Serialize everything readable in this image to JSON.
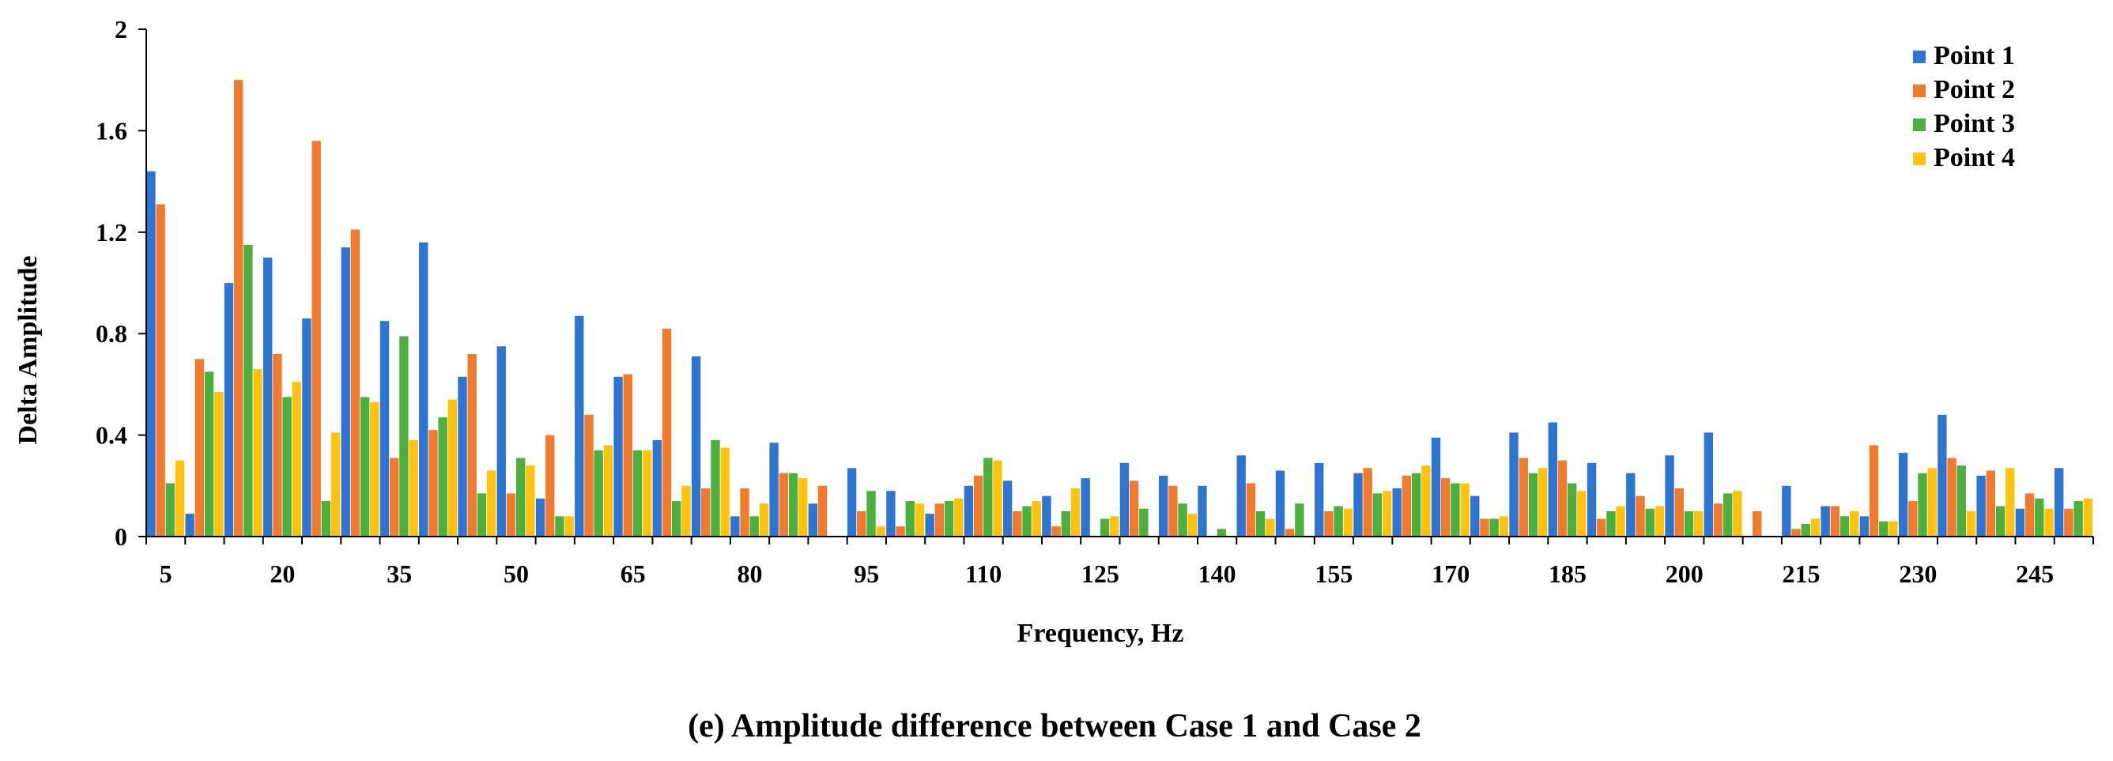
{
  "chart_data": {
    "type": "bar",
    "title": "",
    "caption": "(e) Amplitude  difference between Case 1 and Case 2",
    "xlabel": "Frequency,   Hz",
    "ylabel": "Delta Amplitude",
    "ylim": [
      0,
      2
    ],
    "yticks": [
      "0",
      "0.4",
      "0.8",
      "1.2",
      "1.6",
      "2"
    ],
    "ytick_values": [
      0,
      0.4,
      0.8,
      1.2,
      1.6,
      2.0
    ],
    "xticks": [
      "5",
      "20",
      "35",
      "50",
      "65",
      "80",
      "95",
      "110",
      "125",
      "140",
      "155",
      "170",
      "185",
      "200",
      "215",
      "230",
      "245"
    ],
    "xtick_values": [
      5,
      20,
      35,
      50,
      65,
      80,
      95,
      110,
      125,
      140,
      155,
      170,
      185,
      200,
      215,
      230,
      245
    ],
    "legend_position": "top-right",
    "categories": [
      5,
      10,
      15,
      20,
      25,
      30,
      35,
      40,
      45,
      50,
      55,
      60,
      65,
      70,
      75,
      80,
      85,
      90,
      95,
      100,
      105,
      110,
      115,
      120,
      125,
      130,
      135,
      140,
      145,
      150,
      155,
      160,
      165,
      170,
      175,
      180,
      185,
      190,
      195,
      200,
      205,
      210,
      215,
      220,
      225,
      230,
      235,
      240,
      245,
      250
    ],
    "series": [
      {
        "name": "Point 1",
        "color": "#2E75D2",
        "values": [
          1.44,
          0.09,
          1.0,
          1.1,
          0.86,
          1.14,
          0.85,
          1.16,
          0.63,
          0.75,
          0.15,
          0.87,
          0.63,
          0.38,
          0.71,
          0.08,
          0.37,
          0.13,
          0.27,
          0.18,
          0.09,
          0.2,
          0.22,
          0.16,
          0.23,
          0.29,
          0.24,
          0.2,
          0.32,
          0.26,
          0.29,
          0.25,
          0.19,
          0.39,
          0.16,
          0.41,
          0.45,
          0.29,
          0.25,
          0.32,
          0.41,
          0.0,
          0.2,
          0.12,
          0.08,
          0.33,
          0.48,
          0.24,
          0.11,
          0.27
        ]
      },
      {
        "name": "Point 2",
        "color": "#F07A2E",
        "values": [
          1.31,
          0.7,
          1.8,
          0.72,
          1.56,
          1.21,
          0.31,
          0.42,
          0.72,
          0.17,
          0.4,
          0.48,
          0.64,
          0.82,
          0.19,
          0.19,
          0.25,
          0.2,
          0.1,
          0.04,
          0.13,
          0.24,
          0.1,
          0.04,
          0.0,
          0.22,
          0.2,
          0.0,
          0.21,
          0.03,
          0.1,
          0.27,
          0.24,
          0.23,
          0.07,
          0.31,
          0.3,
          0.07,
          0.16,
          0.19,
          0.13,
          0.1,
          0.03,
          0.12,
          0.36,
          0.14,
          0.31,
          0.26,
          0.17,
          0.11
        ]
      },
      {
        "name": "Point 3",
        "color": "#4CAF3E",
        "values": [
          0.21,
          0.65,
          1.15,
          0.55,
          0.14,
          0.55,
          0.79,
          0.47,
          0.17,
          0.31,
          0.08,
          0.34,
          0.34,
          0.14,
          0.38,
          0.08,
          0.25,
          0.0,
          0.18,
          0.14,
          0.14,
          0.31,
          0.12,
          0.1,
          0.07,
          0.11,
          0.13,
          0.03,
          0.1,
          0.13,
          0.12,
          0.17,
          0.25,
          0.21,
          0.07,
          0.25,
          0.21,
          0.1,
          0.11,
          0.1,
          0.17,
          0.0,
          0.05,
          0.08,
          0.06,
          0.25,
          0.28,
          0.12,
          0.15,
          0.14
        ]
      },
      {
        "name": "Point 4",
        "color": "#FFC20E",
        "values": [
          0.3,
          0.57,
          0.66,
          0.61,
          0.41,
          0.53,
          0.38,
          0.54,
          0.26,
          0.28,
          0.08,
          0.36,
          0.34,
          0.2,
          0.35,
          0.13,
          0.23,
          0.0,
          0.04,
          0.13,
          0.15,
          0.3,
          0.14,
          0.19,
          0.08,
          0.0,
          0.09,
          0.0,
          0.07,
          0.0,
          0.11,
          0.18,
          0.28,
          0.21,
          0.08,
          0.27,
          0.18,
          0.12,
          0.12,
          0.1,
          0.18,
          0.0,
          0.07,
          0.1,
          0.06,
          0.27,
          0.1,
          0.27,
          0.11,
          0.15
        ]
      }
    ]
  }
}
